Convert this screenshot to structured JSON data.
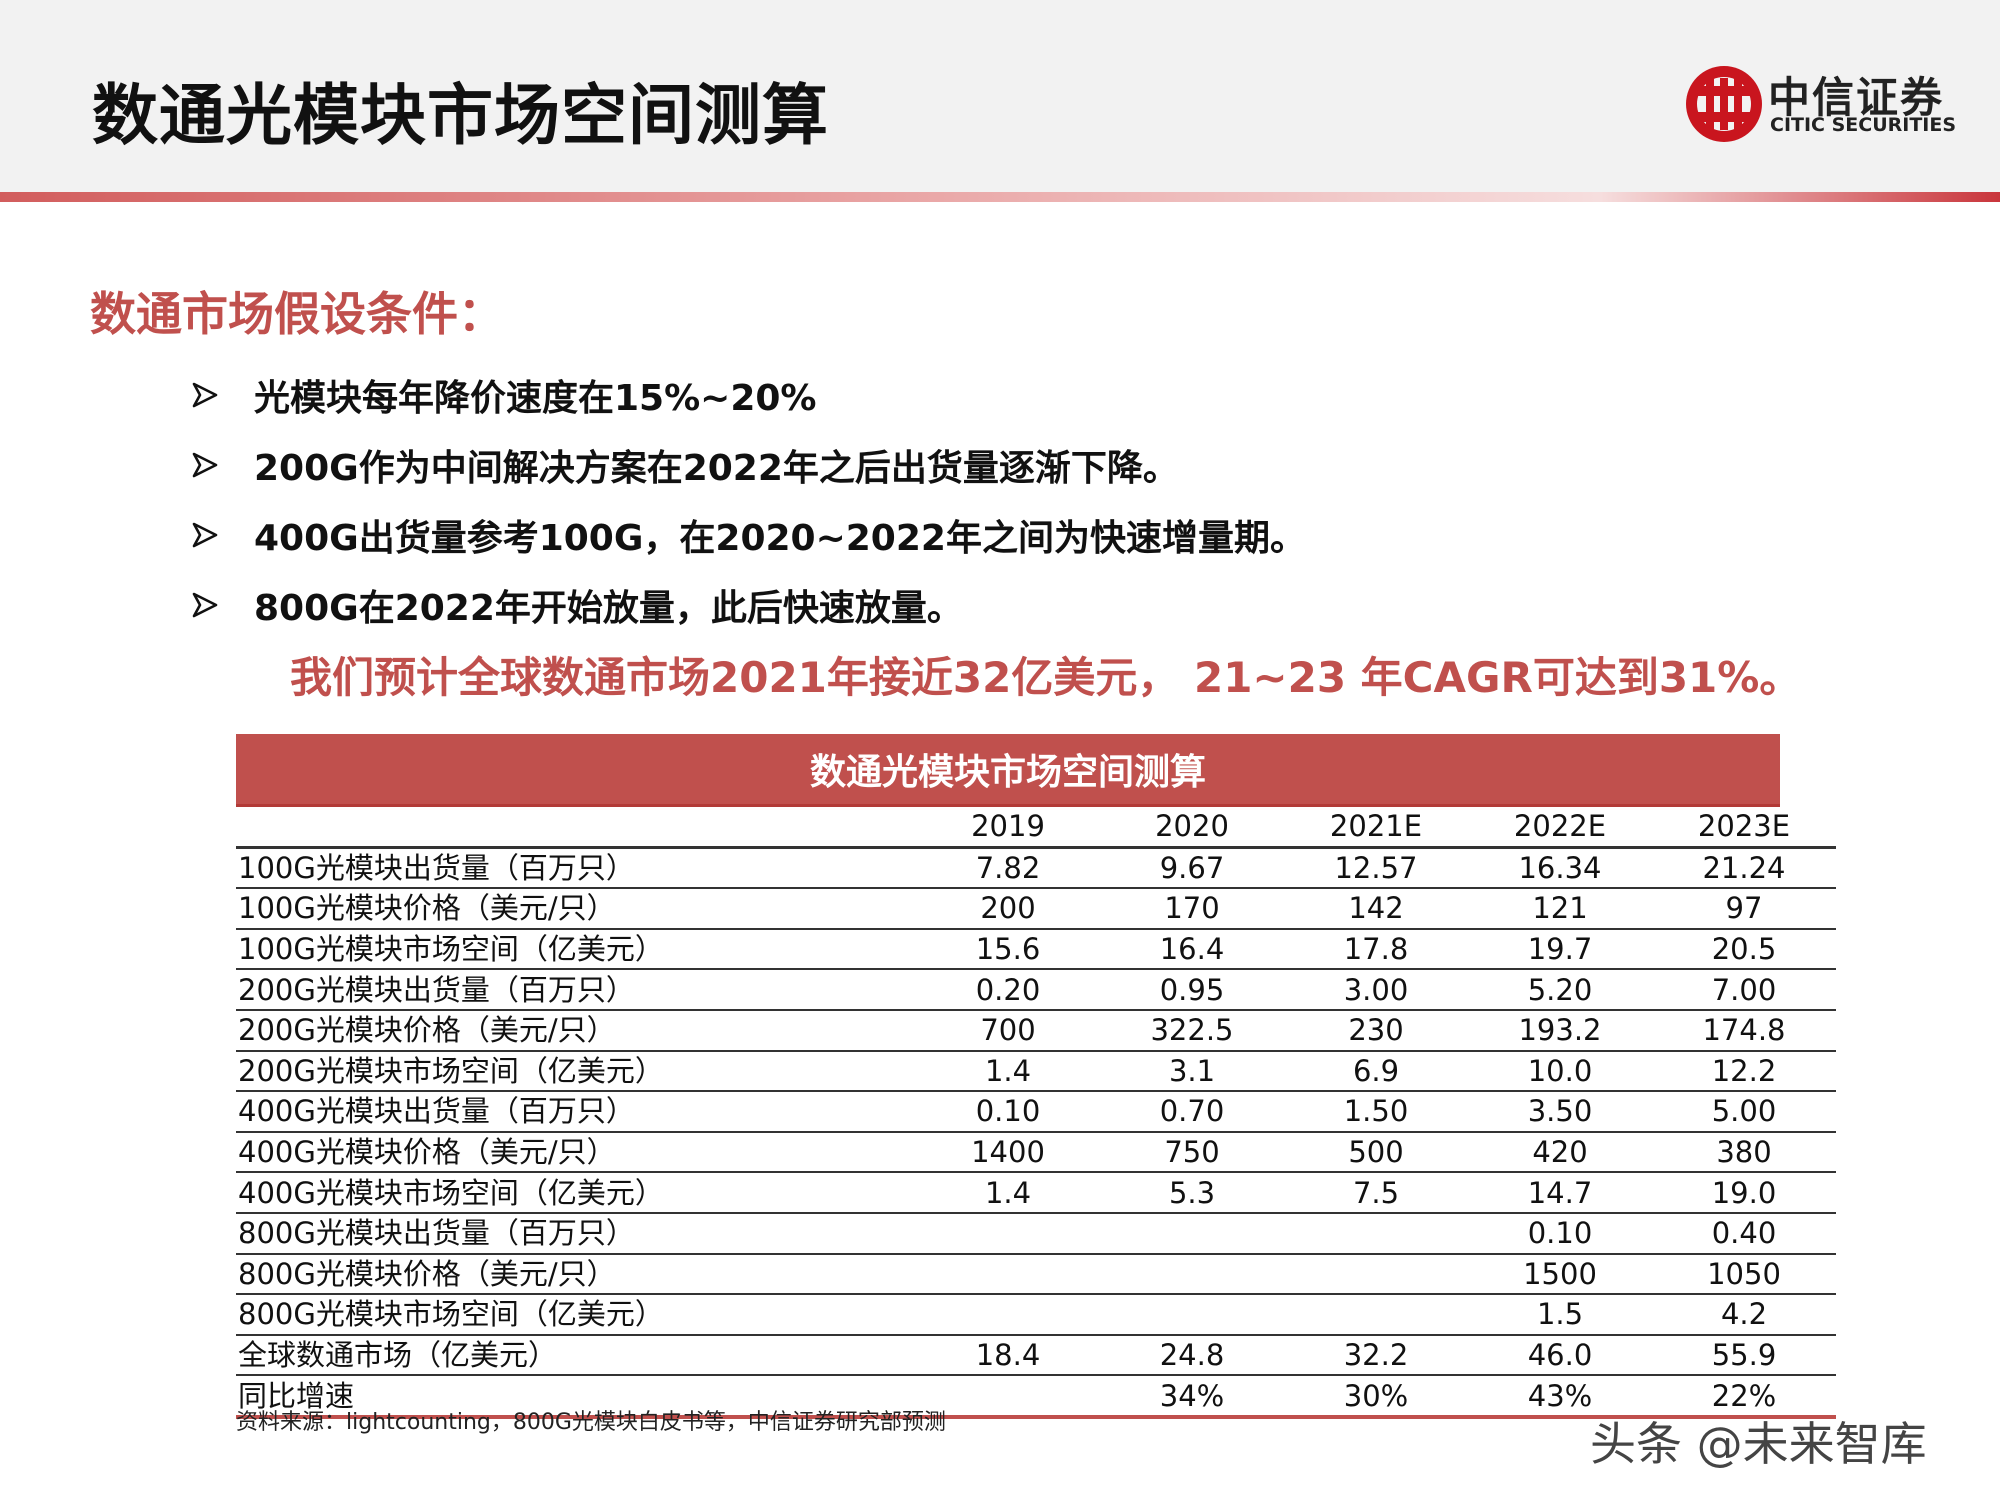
{
  "header": {
    "title": "数通光模块市场空间测算",
    "logo_cn": "中信证券",
    "logo_en": "CITIC SECURITIES"
  },
  "assumptions": {
    "title": "数通市场假设条件：",
    "bullet_icon": "arrow-bullet-icon",
    "items": [
      "光模块每年降价速度在15%~20%",
      "200G作为中间解决方案在2022年之后出货量逐渐下降。",
      "400G出货量参考100G，在2020~2022年之间为快速增量期。",
      "800G在2022年开始放量，此后快速放量。"
    ],
    "conclusion": "我们预计全球数通市场2021年接近32亿美元， 21~23 年CAGR可达到31%。"
  },
  "table": {
    "title": "数通光模块市场空间测算",
    "columns": [
      "2019",
      "2020",
      "2021E",
      "2022E",
      "2023E"
    ],
    "rows": [
      {
        "label": "100G光模块出货量（百万只）",
        "values": [
          "7.82",
          "9.67",
          "12.57",
          "16.34",
          "21.24"
        ]
      },
      {
        "label": "100G光模块价格（美元/只）",
        "values": [
          "200",
          "170",
          "142",
          "121",
          "97"
        ]
      },
      {
        "label": "100G光模块市场空间（亿美元）",
        "values": [
          "15.6",
          "16.4",
          "17.8",
          "19.7",
          "20.5"
        ]
      },
      {
        "label": "200G光模块出货量（百万只）",
        "values": [
          "0.20",
          "0.95",
          "3.00",
          "5.20",
          "7.00"
        ]
      },
      {
        "label": "200G光模块价格（美元/只）",
        "values": [
          "700",
          "322.5",
          "230",
          "193.2",
          "174.8"
        ]
      },
      {
        "label": "200G光模块市场空间（亿美元）",
        "values": [
          "1.4",
          "3.1",
          "6.9",
          "10.0",
          "12.2"
        ]
      },
      {
        "label": "400G光模块出货量（百万只）",
        "values": [
          "0.10",
          "0.70",
          "1.50",
          "3.50",
          "5.00"
        ]
      },
      {
        "label": "400G光模块价格（美元/只）",
        "values": [
          "1400",
          "750",
          "500",
          "420",
          "380"
        ]
      },
      {
        "label": "400G光模块市场空间（亿美元）",
        "values": [
          "1.4",
          "5.3",
          "7.5",
          "14.7",
          "19.0"
        ]
      },
      {
        "label": "800G光模块出货量（百万只）",
        "values": [
          "",
          "",
          "",
          "0.10",
          "0.40"
        ]
      },
      {
        "label": "800G光模块价格（美元/只）",
        "values": [
          "",
          "",
          "",
          "1500",
          "1050"
        ]
      },
      {
        "label": "800G光模块市场空间（亿美元）",
        "values": [
          "",
          "",
          "",
          "1.5",
          "4.2"
        ]
      },
      {
        "label": "全球数通市场（亿美元）",
        "values": [
          "18.4",
          "24.8",
          "32.2",
          "46.0",
          "55.9"
        ]
      },
      {
        "label": "同比增速",
        "values": [
          "",
          "34%",
          "30%",
          "43%",
          "22%"
        ]
      }
    ]
  },
  "source": "资料来源：lightcounting，800G光模块白皮书等，中信证券研究部预测",
  "watermark": "头条 @未来智库",
  "colors": {
    "accent": "#c0504d",
    "header_bg": "#f2f2f2",
    "logo_red": "#c9151e"
  }
}
